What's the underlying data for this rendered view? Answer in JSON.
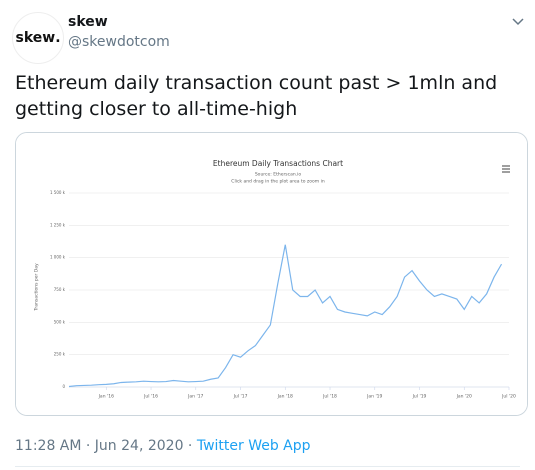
{
  "tweet": {
    "avatar_text": "skew",
    "name": "skew",
    "handle": "@skewdotcom",
    "text": "Ethereum daily transaction count past > 1mln and getting closer to all-time-high",
    "timestamp": "11:28 AM · Jun 24, 2020 ·",
    "source": "Twitter Web App"
  },
  "chart_data": {
    "type": "line",
    "title": "Ethereum Daily Transactions Chart",
    "subtitle": "Source: Etherscan.io",
    "annotation": "Click and drag in the plot area to zoom in",
    "y_label": "Transactions per Day",
    "x": [
      "2015-08",
      "2015-09",
      "2015-10",
      "2015-11",
      "2015-12",
      "2016-01",
      "2016-02",
      "2016-03",
      "2016-04",
      "2016-05",
      "2016-06",
      "2016-07",
      "2016-08",
      "2016-09",
      "2016-10",
      "2016-11",
      "2016-12",
      "2017-01",
      "2017-02",
      "2017-03",
      "2017-04",
      "2017-05",
      "2017-06",
      "2017-07",
      "2017-08",
      "2017-09",
      "2017-10",
      "2017-11",
      "2017-12",
      "2018-01",
      "2018-02",
      "2018-03",
      "2018-04",
      "2018-05",
      "2018-06",
      "2018-07",
      "2018-08",
      "2018-09",
      "2018-10",
      "2018-11",
      "2018-12",
      "2019-01",
      "2019-02",
      "2019-03",
      "2019-04",
      "2019-05",
      "2019-06",
      "2019-07",
      "2019-08",
      "2019-09",
      "2019-10",
      "2019-11",
      "2019-12",
      "2020-01",
      "2020-02",
      "2020-03",
      "2020-04",
      "2020-05",
      "2020-06"
    ],
    "series": [
      {
        "name": "Transactions",
        "color": "#7cb5ec",
        "values": [
          4000,
          10000,
          12000,
          14000,
          18000,
          20000,
          25000,
          35000,
          38000,
          40000,
          45000,
          42000,
          40000,
          42000,
          50000,
          45000,
          40000,
          42000,
          45000,
          60000,
          70000,
          150000,
          250000,
          230000,
          280000,
          320000,
          400000,
          480000,
          800000,
          1100000,
          750000,
          700000,
          700000,
          750000,
          650000,
          700000,
          600000,
          580000,
          570000,
          560000,
          550000,
          580000,
          560000,
          620000,
          700000,
          850000,
          900000,
          820000,
          750000,
          700000,
          720000,
          700000,
          680000,
          600000,
          700000,
          650000,
          720000,
          850000,
          950000
        ]
      }
    ],
    "xlim": [
      "2015-08",
      "2020-07"
    ],
    "xticks": [
      {
        "value": "2016-01",
        "label": "Jan '16"
      },
      {
        "value": "2016-07",
        "label": "Jul '16"
      },
      {
        "value": "2017-01",
        "label": "Jan '17"
      },
      {
        "value": "2017-07",
        "label": "Jul '17"
      },
      {
        "value": "2018-01",
        "label": "Jan '18"
      },
      {
        "value": "2018-07",
        "label": "Jul '18"
      },
      {
        "value": "2019-01",
        "label": "Jan '19"
      },
      {
        "value": "2019-07",
        "label": "Jul '19"
      },
      {
        "value": "2020-01",
        "label": "Jan '20"
      },
      {
        "value": "2020-07",
        "label": "Jul '20"
      }
    ],
    "ylim": [
      0,
      1500000
    ],
    "yticks": [
      0,
      {
        "value": 250000,
        "label": "250 k"
      },
      {
        "value": 500000,
        "label": "500 k"
      },
      {
        "value": 750000,
        "label": "750 k"
      },
      {
        "value": 1000000,
        "label": "1 000 k"
      },
      {
        "value": 1250000,
        "label": "1 250 k"
      },
      {
        "value": 1500000,
        "label": "1 500 k"
      }
    ],
    "grid": true
  }
}
